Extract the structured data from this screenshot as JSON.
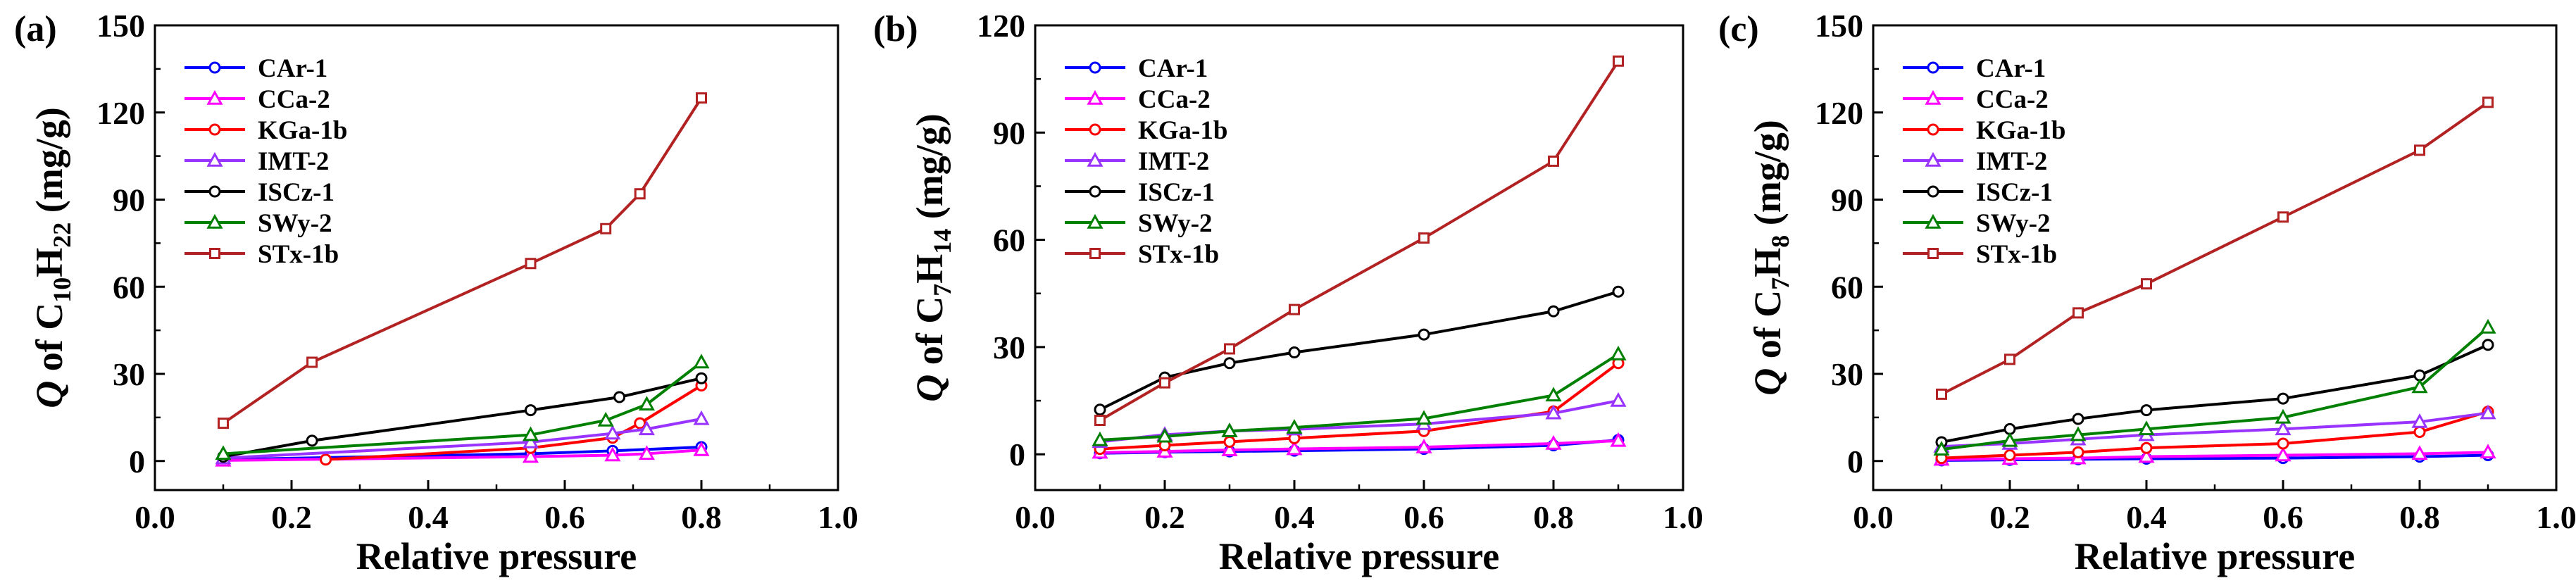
{
  "figure": {
    "x_label": "Relative pressure",
    "y_label_prefix": "Q",
    "y_label_of": "of",
    "y_label_units": "(mg/g)"
  },
  "chart_data": [
    {
      "type": "line",
      "panel_label": "(a)",
      "y_compound": {
        "main": "C",
        "sub1": "10",
        "mid": "H",
        "sub2": "22"
      },
      "xlim": [
        0.0,
        1.0
      ],
      "ylim": [
        -10,
        150
      ],
      "x_ticks": [
        0.0,
        0.2,
        0.4,
        0.6,
        0.8,
        1.0
      ],
      "x_tick_labels": [
        "0.0",
        "0.2",
        "0.4",
        "0.6",
        "0.8",
        "1.0"
      ],
      "y_ticks": [
        0,
        30,
        60,
        90,
        120,
        150
      ],
      "y_tick_labels": [
        "0",
        "30",
        "60",
        "90",
        "120",
        "150"
      ],
      "legend": "top-left",
      "series": [
        {
          "name": "CAr-1",
          "color": "#0000FF",
          "marker": "circle",
          "x": [
            0.1,
            0.55,
            0.67,
            0.8
          ],
          "y": [
            0.5,
            2.5,
            3.5,
            4.8
          ]
        },
        {
          "name": "CCa-2",
          "color": "#FF00FF",
          "marker": "triangle",
          "x": [
            0.1,
            0.55,
            0.67,
            0.72,
            0.8
          ],
          "y": [
            0.2,
            1.5,
            2.0,
            2.5,
            3.8
          ]
        },
        {
          "name": "KGa-1b",
          "color": "#FF0000",
          "marker": "circle",
          "x": [
            0.25,
            0.55,
            0.67,
            0.71,
            0.8
          ],
          "y": [
            0.5,
            4.5,
            8.0,
            13.0,
            26.0
          ]
        },
        {
          "name": "IMT-2",
          "color": "#9933FF",
          "marker": "triangle",
          "x": [
            0.1,
            0.55,
            0.67,
            0.72,
            0.8
          ],
          "y": [
            1.0,
            6.5,
            9.5,
            11.0,
            14.5
          ]
        },
        {
          "name": "ISCz-1",
          "color": "#000000",
          "marker": "circle",
          "x": [
            0.1,
            0.23,
            0.55,
            0.68,
            0.8
          ],
          "y": [
            1.5,
            7.0,
            17.5,
            22.0,
            28.5
          ]
        },
        {
          "name": "SWy-2",
          "color": "#008000",
          "marker": "triangle",
          "x": [
            0.1,
            0.55,
            0.66,
            0.72,
            0.8
          ],
          "y": [
            2.5,
            9.0,
            14.0,
            19.5,
            34.0
          ]
        },
        {
          "name": "STx-1b",
          "color": "#B22222",
          "marker": "square",
          "x": [
            0.1,
            0.23,
            0.55,
            0.66,
            0.71,
            0.8
          ],
          "y": [
            13.0,
            34.0,
            68.0,
            80.0,
            92.0,
            125.0
          ]
        }
      ]
    },
    {
      "type": "line",
      "panel_label": "(b)",
      "y_compound": {
        "main": "C",
        "sub1": "7",
        "mid": "H",
        "sub2": "14"
      },
      "xlim": [
        0.0,
        1.0
      ],
      "ylim": [
        -10,
        120
      ],
      "x_ticks": [
        0.0,
        0.2,
        0.4,
        0.6,
        0.8,
        1.0
      ],
      "x_tick_labels": [
        "0.0",
        "0.2",
        "0.4",
        "0.6",
        "0.8",
        "1.0"
      ],
      "y_ticks": [
        0,
        30,
        60,
        90,
        120
      ],
      "y_tick_labels": [
        "0",
        "30",
        "60",
        "90",
        "120"
      ],
      "legend": "top-left",
      "series": [
        {
          "name": "CAr-1",
          "color": "#0000FF",
          "marker": "circle",
          "x": [
            0.1,
            0.2,
            0.3,
            0.4,
            0.6,
            0.8,
            0.9
          ],
          "y": [
            0.3,
            0.6,
            0.8,
            1.0,
            1.5,
            2.5,
            4.0
          ]
        },
        {
          "name": "CCa-2",
          "color": "#FF00FF",
          "marker": "triangle",
          "x": [
            0.1,
            0.2,
            0.3,
            0.4,
            0.6,
            0.8,
            0.9
          ],
          "y": [
            0.5,
            0.8,
            1.2,
            1.5,
            2.0,
            3.0,
            3.8
          ]
        },
        {
          "name": "KGa-1b",
          "color": "#FF0000",
          "marker": "circle",
          "x": [
            0.1,
            0.2,
            0.3,
            0.4,
            0.6,
            0.8,
            0.9
          ],
          "y": [
            1.5,
            2.5,
            3.5,
            4.5,
            6.5,
            12.0,
            25.5
          ]
        },
        {
          "name": "IMT-2",
          "color": "#9933FF",
          "marker": "triangle",
          "x": [
            0.1,
            0.2,
            0.3,
            0.4,
            0.6,
            0.8,
            0.9
          ],
          "y": [
            3.5,
            5.5,
            6.5,
            7.0,
            8.5,
            11.5,
            15.0
          ]
        },
        {
          "name": "ISCz-1",
          "color": "#000000",
          "marker": "circle",
          "x": [
            0.1,
            0.2,
            0.3,
            0.4,
            0.6,
            0.8,
            0.9
          ],
          "y": [
            12.5,
            21.5,
            25.5,
            28.5,
            33.5,
            40.0,
            45.5
          ]
        },
        {
          "name": "SWy-2",
          "color": "#008000",
          "marker": "triangle",
          "x": [
            0.1,
            0.2,
            0.3,
            0.4,
            0.6,
            0.8,
            0.9
          ],
          "y": [
            4.0,
            5.0,
            6.5,
            7.5,
            10.0,
            16.5,
            28.0
          ]
        },
        {
          "name": "STx-1b",
          "color": "#B22222",
          "marker": "square",
          "x": [
            0.1,
            0.2,
            0.3,
            0.4,
            0.6,
            0.8,
            0.9
          ],
          "y": [
            9.5,
            20.0,
            29.5,
            40.5,
            60.5,
            82.0,
            110.0
          ]
        }
      ]
    },
    {
      "type": "line",
      "panel_label": "(c)",
      "y_compound": {
        "main": "C",
        "sub1": "7",
        "mid": "H",
        "sub2": "8"
      },
      "xlim": [
        0.0,
        1.0
      ],
      "ylim": [
        -10,
        150
      ],
      "x_ticks": [
        0.0,
        0.2,
        0.4,
        0.6,
        0.8,
        1.0
      ],
      "x_tick_labels": [
        "0.0",
        "0.2",
        "0.4",
        "0.6",
        "0.8",
        "1.0"
      ],
      "y_ticks": [
        0,
        30,
        60,
        90,
        120,
        150
      ],
      "y_tick_labels": [
        "0",
        "30",
        "60",
        "90",
        "120",
        "150"
      ],
      "legend": "top-left",
      "series": [
        {
          "name": "CAr-1",
          "color": "#0000FF",
          "marker": "circle",
          "x": [
            0.1,
            0.2,
            0.3,
            0.4,
            0.6,
            0.8,
            0.9
          ],
          "y": [
            0.2,
            0.4,
            0.6,
            0.8,
            1.0,
            1.5,
            2.0
          ]
        },
        {
          "name": "CCa-2",
          "color": "#FF00FF",
          "marker": "triangle",
          "x": [
            0.1,
            0.2,
            0.3,
            0.4,
            0.6,
            0.8,
            0.9
          ],
          "y": [
            0.5,
            0.8,
            1.0,
            1.5,
            2.0,
            2.5,
            3.0
          ]
        },
        {
          "name": "KGa-1b",
          "color": "#FF0000",
          "marker": "circle",
          "x": [
            0.1,
            0.2,
            0.3,
            0.4,
            0.6,
            0.8,
            0.9
          ],
          "y": [
            1.0,
            2.0,
            3.0,
            4.5,
            6.0,
            10.0,
            17.0
          ]
        },
        {
          "name": "IMT-2",
          "color": "#9933FF",
          "marker": "triangle",
          "x": [
            0.1,
            0.2,
            0.3,
            0.4,
            0.6,
            0.8,
            0.9
          ],
          "y": [
            5.0,
            6.0,
            7.5,
            9.0,
            11.0,
            13.5,
            16.5
          ]
        },
        {
          "name": "ISCz-1",
          "color": "#000000",
          "marker": "circle",
          "x": [
            0.1,
            0.2,
            0.3,
            0.4,
            0.6,
            0.8,
            0.9
          ],
          "y": [
            6.5,
            11.0,
            14.5,
            17.5,
            21.5,
            29.5,
            40.0
          ]
        },
        {
          "name": "SWy-2",
          "color": "#008000",
          "marker": "triangle",
          "x": [
            0.1,
            0.2,
            0.3,
            0.4,
            0.6,
            0.8,
            0.9
          ],
          "y": [
            4.0,
            7.0,
            9.0,
            11.0,
            15.0,
            25.5,
            46.0
          ]
        },
        {
          "name": "STx-1b",
          "color": "#B22222",
          "marker": "square",
          "x": [
            0.1,
            0.2,
            0.3,
            0.4,
            0.6,
            0.8,
            0.9
          ],
          "y": [
            23.0,
            35.0,
            51.0,
            61.0,
            84.0,
            107.0,
            123.5
          ]
        }
      ]
    }
  ]
}
